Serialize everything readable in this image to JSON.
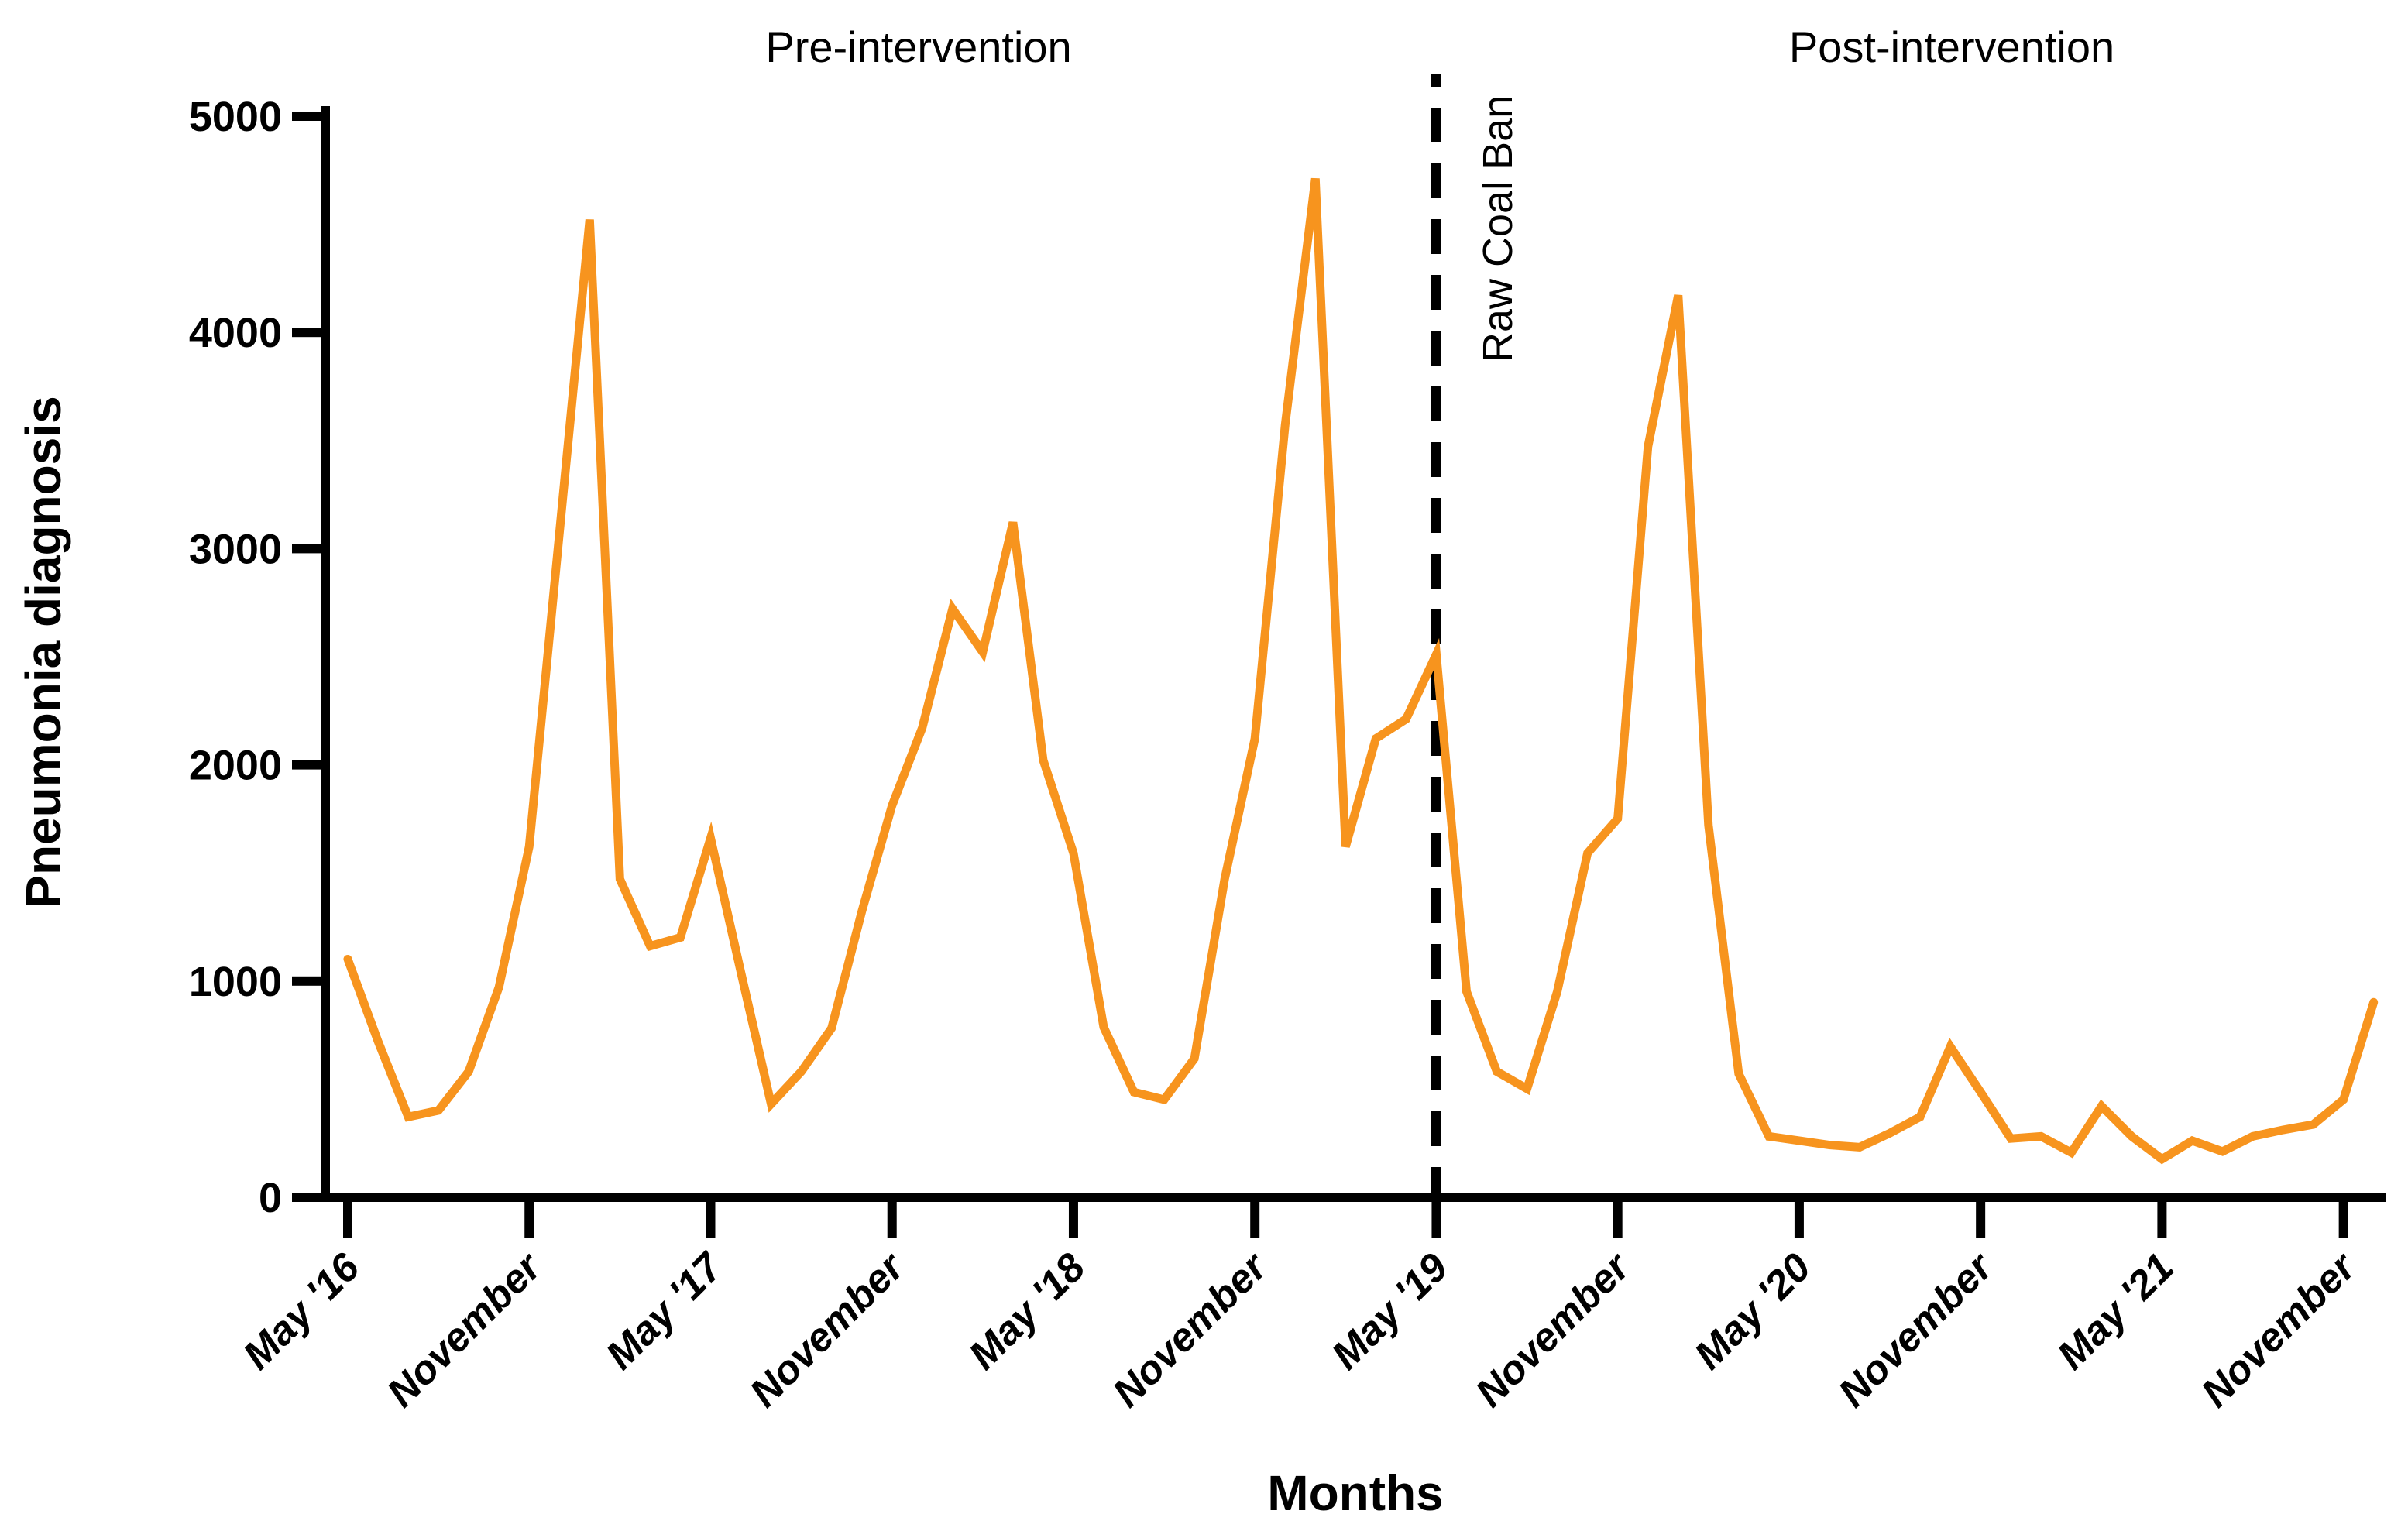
{
  "labels": {
    "pre_intervention": "Pre-intervention",
    "post_intervention": "Post-intervention",
    "raw_coal_ban": "Raw Coal Ban",
    "y_axis": "Pneumonia diagnosis",
    "x_axis": "Months"
  },
  "colors": {
    "line": "#F7941E",
    "axis": "#000000",
    "background": "#FFFFFF"
  },
  "chart_data": {
    "type": "line",
    "title": "",
    "ylabel": "Pneumonia diagnosis",
    "xlabel": "Months",
    "ylim": [
      0,
      5000
    ],
    "grid": false,
    "legend_position": "none",
    "y_ticks": [
      0,
      1000,
      2000,
      3000,
      4000,
      5000
    ],
    "x_tick_labels": [
      "May '16",
      "November",
      "May '17",
      "November",
      "May '18",
      "November",
      "May '19",
      "November",
      "May '20",
      "November",
      "May '21",
      "November"
    ],
    "x_tick_month_indices": [
      0,
      6,
      12,
      18,
      24,
      30,
      36,
      42,
      48,
      54,
      60,
      66
    ],
    "intervention": {
      "label": "Raw Coal Ban",
      "month": "May 2019",
      "month_index": 36,
      "line_style": "dashed"
    },
    "sections": [
      {
        "label": "Pre-intervention",
        "range_months": [
          "May 2016",
          "May 2019"
        ]
      },
      {
        "label": "Post-intervention",
        "range_months": [
          "May 2019",
          "Dec 2021"
        ]
      }
    ],
    "months": [
      "May 2016",
      "Jun 2016",
      "Jul 2016",
      "Aug 2016",
      "Sep 2016",
      "Oct 2016",
      "Nov 2016",
      "Dec 2016",
      "Jan 2017",
      "Feb 2017",
      "Mar 2017",
      "Apr 2017",
      "May 2017",
      "Jun 2017",
      "Jul 2017",
      "Aug 2017",
      "Sep 2017",
      "Oct 2017",
      "Nov 2017",
      "Dec 2017",
      "Jan 2018",
      "Feb 2018",
      "Mar 2018",
      "Apr 2018",
      "May 2018",
      "Jun 2018",
      "Jul 2018",
      "Aug 2018",
      "Sep 2018",
      "Oct 2018",
      "Nov 2018",
      "Dec 2018",
      "Jan 2019",
      "Feb 2019",
      "Mar 2019",
      "Apr 2019",
      "May 2019",
      "Jun 2019",
      "Jul 2019",
      "Aug 2019",
      "Sep 2019",
      "Oct 2019",
      "Nov 2019",
      "Dec 2019",
      "Jan 2020",
      "Feb 2020",
      "Mar 2020",
      "Apr 2020",
      "May 2020",
      "Jun 2020",
      "Jul 2020",
      "Aug 2020",
      "Sep 2020",
      "Oct 2020",
      "Nov 2020",
      "Dec 2020",
      "Jan 2021",
      "Feb 2021",
      "Mar 2021",
      "Apr 2021",
      "May 2021",
      "Jun 2021",
      "Jul 2021",
      "Aug 2021",
      "Sep 2021",
      "Oct 2021",
      "Nov 2021",
      "Dec 2021"
    ],
    "series": [
      {
        "name": "Pneumonia diagnosis",
        "color": "#F7941E",
        "values": [
          1080,
          700,
          350,
          380,
          560,
          950,
          1600,
          3050,
          4500,
          1450,
          1140,
          1180,
          1640,
          1020,
          410,
          560,
          760,
          1300,
          1790,
          2150,
          2700,
          2500,
          3100,
          2000,
          1570,
          765,
          465,
          430,
          620,
          1450,
          2100,
          3550,
          4690,
          1600,
          2100,
          2190,
          2490,
          930,
          560,
          480,
          930,
          1570,
          1730,
          3450,
          4150,
          1700,
          550,
          260,
          240,
          220,
          210,
          275,
          350,
          675,
          465,
          250,
          260,
          185,
          400,
          260,
          155,
          240,
          190,
          260,
          290,
          315,
          430,
          880
        ]
      }
    ]
  }
}
